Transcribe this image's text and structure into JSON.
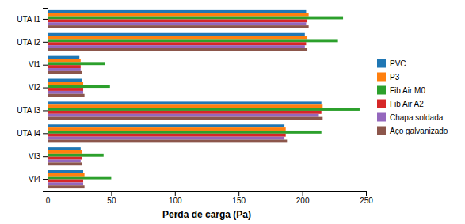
{
  "chart_data": {
    "type": "bar",
    "orientation": "horizontal",
    "categories": [
      "VI4",
      "VI3",
      "UTA I4",
      "UTA I3",
      "VI2",
      "VI1",
      "UTA I2",
      "UTA I1"
    ],
    "series": [
      {
        "name": "PVC",
        "values": [
          28,
          26,
          186,
          215,
          27,
          25,
          202,
          203
        ]
      },
      {
        "name": "P3",
        "values": [
          29,
          27,
          187,
          216,
          28,
          26,
          204,
          205
        ]
      },
      {
        "name": "Fib Air M0",
        "values": [
          50,
          44,
          215,
          245,
          49,
          45,
          228,
          232
        ]
      },
      {
        "name": "Fib Air A2",
        "values": [
          28,
          27,
          187,
          215,
          28,
          26,
          203,
          204
        ]
      },
      {
        "name": "Chapa soldada",
        "values": [
          28,
          26,
          186,
          213,
          28,
          26,
          202,
          203
        ]
      },
      {
        "name": "Aço galvanizado",
        "values": [
          29,
          27,
          188,
          216,
          29,
          27,
          204,
          205
        ]
      }
    ],
    "xlabel": "Perda de carga (Pa)",
    "xlim": [
      0,
      250
    ],
    "xticks": [
      0,
      50,
      100,
      150,
      200,
      250
    ],
    "grid": false,
    "legend": "right"
  }
}
